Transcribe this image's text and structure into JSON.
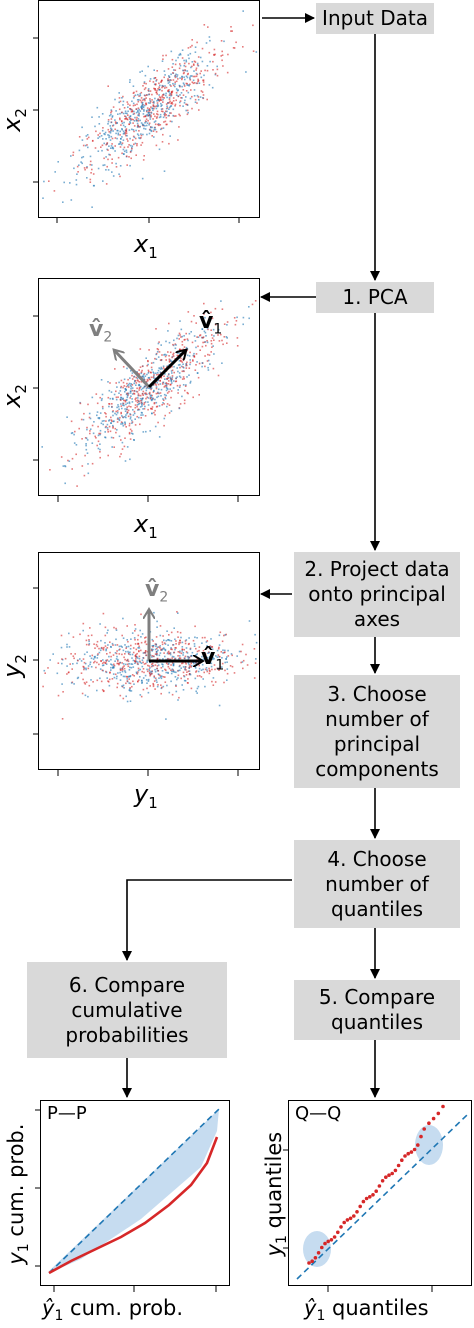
{
  "boxes": {
    "input": "Input Data",
    "pca": "1. PCA",
    "project": "2. Project data\nonto principal\naxes",
    "choose_pc": "3. Choose\nnumber of\nprincipal\ncomponents",
    "choose_q": "4. Choose\nnumber of\nquantiles",
    "compare_q": "5. Compare\nquantiles",
    "compare_p": "6. Compare\ncumulative\nprobabilities"
  },
  "panels": {
    "input": {
      "xlabel": "x",
      "xsub": "1",
      "ylabel": "x",
      "ysub": "2"
    },
    "pca": {
      "xlabel": "x",
      "xsub": "1",
      "ylabel": "x",
      "ysub": "2",
      "v1": "v̂",
      "v1sub": "1",
      "v2": "v̂",
      "v2sub": "2"
    },
    "proj": {
      "xlabel": "y",
      "xsub": "1",
      "ylabel": "y",
      "ysub": "2",
      "v1": "v̂",
      "v1sub": "1",
      "v2": "v̂",
      "v2sub": "2"
    },
    "pp": {
      "tag": "P—P",
      "xlabel": "ŷ",
      "xsub": "1",
      "xrest": " cum. prob.",
      "ylabel": "y",
      "ysub": "1",
      "yrest": " cum. prob."
    },
    "qq": {
      "tag": "Q—Q",
      "xlabel": "ŷ",
      "xsub": "1",
      "xrest": " quantiles",
      "ylabel": "y",
      "ysub": "1",
      "yrest": " quantiles"
    }
  },
  "colors": {
    "box": "#d9d9d9",
    "red": "#d62728",
    "blue": "#1f77b4",
    "band": "#aecde9",
    "v1": "#000000",
    "v2": "#7f7f7f"
  }
}
